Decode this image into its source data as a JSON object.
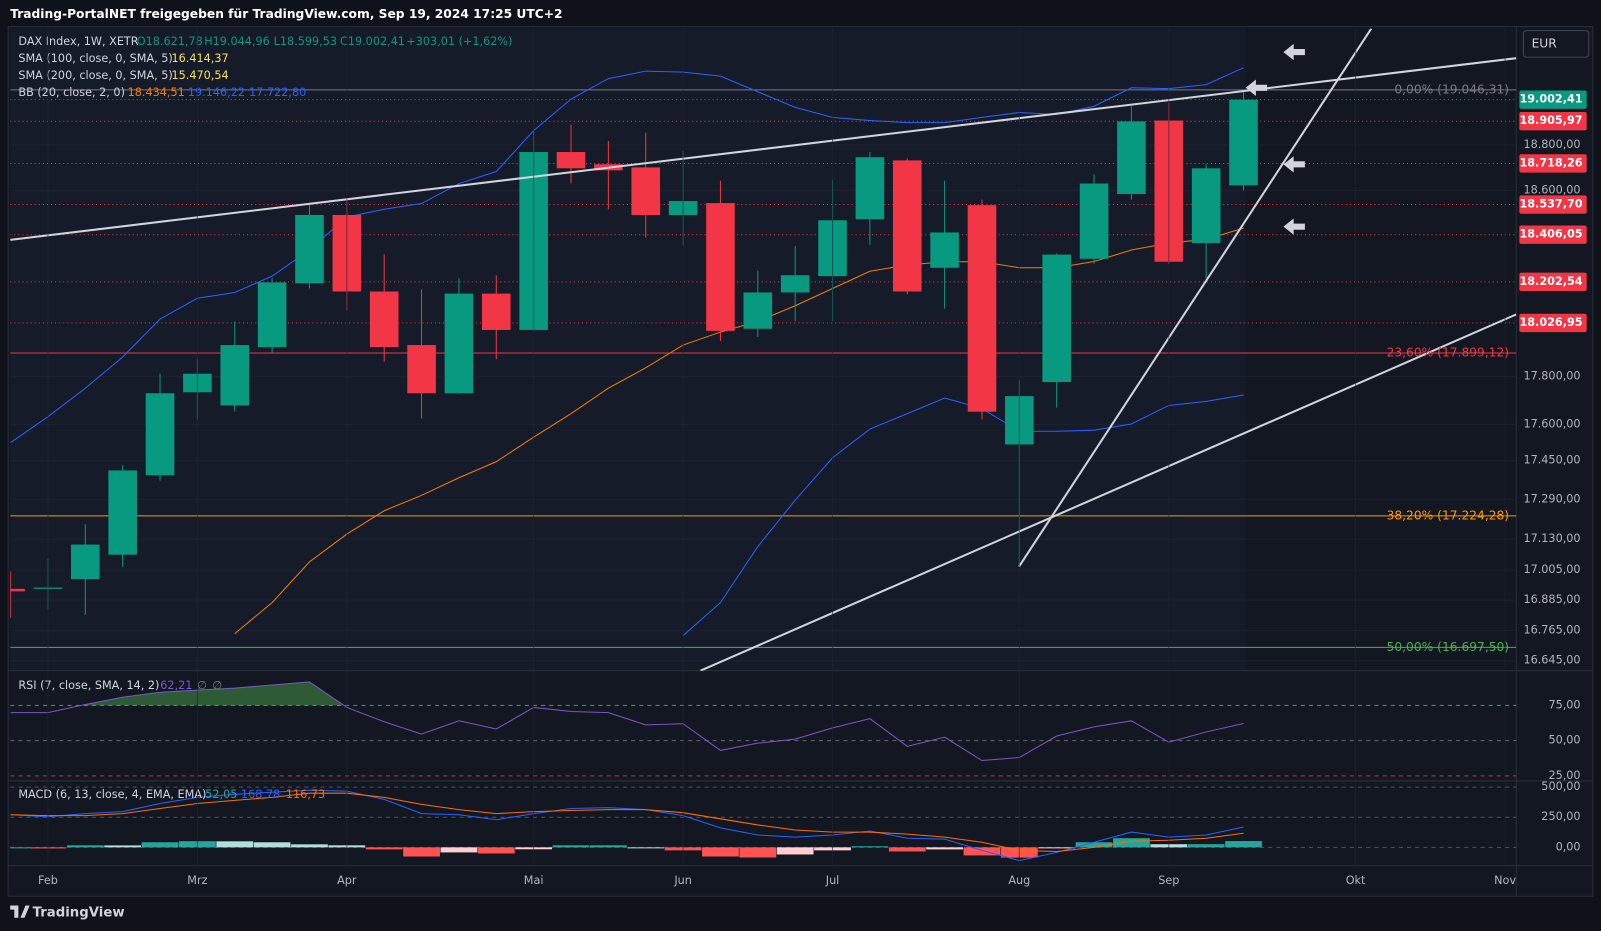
{
  "header": {
    "title": "Trading-PortalNET freigegeben für TradingView.com, Sep 19, 2024 17:25 UTC+2",
    "currency": "EUR",
    "brand": "TradingView"
  },
  "chart_data": [
    {
      "type": "candlestick",
      "name": "DAX Index, 1W, XETR",
      "legend": {
        "open": "O18.621,78",
        "high": "H19.044,96",
        "low": "L18.599,53",
        "close": "C19.002,41",
        "change": "+303,01 (+1,62%)"
      },
      "indicator_legends": [
        {
          "name": "SMA (100, close, 0, SMA, 5)",
          "readouts": [
            "16.414,37"
          ],
          "colors": [
            "#f7e24b"
          ]
        },
        {
          "name": "SMA (200, close, 0, SMA, 5)",
          "readouts": [
            "15.470,54"
          ],
          "colors": [
            "#f7e24b"
          ]
        },
        {
          "name": "BB (20, close, 2, 0)",
          "readouts": [
            "18.434,51",
            "19.146,22",
            "17.722,80"
          ],
          "colors": [
            "#f57c00",
            "#2962ff",
            "#2962ff"
          ]
        }
      ],
      "categories": [
        null,
        null,
        null,
        null,
        null,
        null,
        null,
        null,
        null,
        null,
        null,
        null,
        null,
        null,
        null,
        null,
        null,
        null,
        null,
        null,
        null,
        null,
        null,
        null,
        null,
        null,
        null,
        null,
        null,
        null,
        null,
        null,
        null,
        null
      ],
      "open": [
        16930,
        16930,
        16969,
        17067,
        17390,
        17734,
        17679,
        17924,
        18196,
        18492,
        18161,
        17933,
        17730,
        18152,
        17997,
        18769,
        18715,
        18701,
        18492,
        18544,
        18002,
        18157,
        18227,
        18474,
        18732,
        18263,
        18535,
        17517,
        17777,
        18302,
        18584,
        18909,
        18370,
        18621.78
      ],
      "high": [
        17000,
        17050,
        17190,
        17432,
        17812,
        17873,
        18034,
        18218,
        18542,
        18559,
        18320,
        18170,
        18218,
        18231,
        18864,
        18891,
        18818,
        18855,
        18773,
        18642,
        18250,
        18357,
        18646,
        18769,
        18740,
        18642,
        18559,
        17785,
        18325,
        18670,
        18973,
        18991,
        18715,
        19044.96
      ],
      "low": [
        16815,
        16850,
        16826,
        17017,
        17368,
        17620,
        17653,
        17898,
        18174,
        18079,
        17863,
        17624,
        17726,
        17873,
        17990,
        18630,
        18517,
        18394,
        18361,
        17950,
        17967,
        18034,
        18034,
        18361,
        18150,
        18088,
        17620,
        17017,
        17670,
        18280,
        18559,
        18280,
        18218,
        18599.53
      ],
      "close": [
        16920,
        16935,
        17108,
        17410,
        17730,
        17812,
        17933,
        18200,
        18492,
        18161,
        17924,
        17730,
        18152,
        17997,
        18769,
        18697,
        18688,
        18492,
        18553,
        17993,
        18157,
        18231,
        18469,
        18746,
        18161,
        18416,
        17653,
        17718,
        18320,
        18630,
        18905,
        18289,
        18697,
        19002.41
      ],
      "up_color": "#089981",
      "down_color": "#f23645",
      "series": [
        {
          "color": "#f57c00",
          "values": [
            null,
            null,
            null,
            null,
            null,
            null,
            16752,
            16875,
            17038,
            17150,
            17245,
            17308,
            17380,
            17446,
            17547,
            17645,
            17751,
            17837,
            17933,
            17988,
            18034,
            18100,
            18174,
            18248,
            18275,
            18289,
            18289,
            18263,
            18263,
            18290,
            18340,
            18370,
            18386,
            18434.51
          ]
        },
        {
          "color": "#2962ff",
          "values": [
            17525,
            17632,
            17751,
            17882,
            18043,
            18132,
            18157,
            18227,
            18340,
            18483,
            18517,
            18542,
            18630,
            18683,
            18864,
            19005,
            19097,
            19131,
            19126,
            19108,
            19038,
            18968,
            18923,
            18909,
            18900,
            18900,
            18923,
            18945,
            18936,
            18973,
            19056,
            19052,
            19070,
            19146.22
          ]
        },
        {
          "color": "#2962ff",
          "values": [
            null,
            null,
            null,
            null,
            null,
            null,
            null,
            null,
            null,
            null,
            null,
            null,
            null,
            null,
            null,
            null,
            null,
            null,
            16744,
            16875,
            17100,
            17288,
            17462,
            17581,
            17645,
            17710,
            17666,
            17572,
            17572,
            17576,
            17602,
            17679,
            17696,
            17722.8
          ]
        }
      ],
      "price_lines": [
        {
          "value": 19002.41,
          "label": "19.002,41",
          "color": "#089981"
        },
        {
          "value": 18905.97,
          "label": "18.905,97",
          "color": "#f23645"
        },
        {
          "value": 18718.26,
          "label": "18.718,26",
          "color": "#f23645"
        },
        {
          "value": 18537.7,
          "label": "18.537,70",
          "color": "#f23645"
        },
        {
          "value": 18406.05,
          "label": "18.406,05",
          "color": "#f23645"
        },
        {
          "value": 18202.54,
          "label": "18.202,54",
          "color": "#f23645"
        },
        {
          "value": 18026.95,
          "label": "18.026,95",
          "color": "#f23645"
        }
      ],
      "fib_levels": [
        {
          "value": 19046.31,
          "label": "0,00% (19.046,31)",
          "color": "#787b86"
        },
        {
          "value": 17899.12,
          "label": "23,60% (17.899,12)",
          "color": "#f23645"
        },
        {
          "value": 17224.28,
          "label": "38,20% (17.224,28)",
          "color": "#ff9800"
        },
        {
          "value": 16697.5,
          "label": "50,00% (16.697,50)",
          "color": "#4caf50"
        }
      ],
      "xlim": [
        -0.01,
        40.3
      ],
      "ylim": [
        16606,
        19324
      ],
      "log_scale": true,
      "yticks": [
        {
          "value": 18800,
          "label": "18.800,00"
        },
        {
          "value": 18600,
          "label": "18.600,00"
        },
        {
          "value": 17800,
          "label": "17.800,00"
        },
        {
          "value": 17600,
          "label": "17.600,00"
        },
        {
          "value": 17450,
          "label": "17.450,00"
        },
        {
          "value": 17290,
          "label": "17.290,00"
        },
        {
          "value": 17130,
          "label": "17.130,00"
        },
        {
          "value": 17005,
          "label": "17.005,00"
        },
        {
          "value": 16885,
          "label": "16.885,00"
        },
        {
          "value": 16765,
          "label": "16.765,00"
        },
        {
          "value": 16645,
          "label": "16.645,00"
        }
      ]
    },
    {
      "type": "line",
      "name": "RSI (7, close, SMA, 14, 2)",
      "readouts": [
        "62,21",
        "∅",
        "∅"
      ],
      "readout_colors": [
        "#7e57c2",
        "#787b86",
        "#787b86"
      ],
      "color": "#7e57c2",
      "overbought_color": "#4caf50",
      "values": [
        69.9,
        69.9,
        75.7,
        80.8,
        84.4,
        85.9,
        87.3,
        89.5,
        91.7,
        73.6,
        63.4,
        54.7,
        64.1,
        58.3,
        73.6,
        70.7,
        69.9,
        61.2,
        62.0,
        43.1,
        48.2,
        51.1,
        59.1,
        65.6,
        46.0,
        52.5,
        35.9,
        38.0,
        53.3,
        59.8,
        64.1,
        48.9,
        56.2,
        62.21
      ],
      "xlim": [
        -0.01,
        40.3
      ],
      "ylim": [
        21.4,
        97.5
      ],
      "yticks": [
        {
          "value": 75,
          "label": "75,00",
          "color": "#4caf50"
        },
        {
          "value": 50,
          "label": "50,00",
          "color": "#787b86"
        },
        {
          "value": 25,
          "label": "25,00",
          "color": "#f23645"
        }
      ]
    },
    {
      "type": "macd",
      "name": "MACD (6, 13, close, 4, EMA, EMA)",
      "readouts": [
        "52,05",
        "168,78",
        "116,73"
      ],
      "readout_colors": [
        "#26a69a",
        "#2962ff",
        "#ff6d00"
      ],
      "histogram": [
        0,
        -9,
        17,
        16,
        42,
        51,
        50,
        42,
        25,
        17,
        -17,
        -76,
        -42,
        -51,
        -16,
        17,
        17,
        0,
        -25,
        -76,
        -84,
        -59,
        -25,
        9,
        -34,
        -17,
        -67,
        -85,
        -8,
        42,
        76,
        26,
        26,
        52.05
      ],
      "series": [
        {
          "color": "#2962ff",
          "values": [
            271,
            254,
            280,
            296,
            364,
            415,
            440,
            457,
            474,
            466,
            398,
            280,
            271,
            229,
            280,
            322,
            330,
            313,
            263,
            161,
            102,
            85,
            102,
            136,
            76,
            68,
            -25,
            -110,
            -42,
            42,
            127,
            85,
            102,
            168.78
          ]
        },
        {
          "color": "#ff6d00",
          "values": [
            271,
            263,
            263,
            280,
            322,
            364,
            390,
            415,
            449,
            449,
            415,
            356,
            313,
            280,
            296,
            305,
            313,
            313,
            288,
            237,
            186,
            144,
            127,
            127,
            110,
            85,
            42,
            -25,
            -34,
            0,
            51,
            59,
            76,
            116.73
          ]
        }
      ],
      "xlim": [
        -0.01,
        40.3
      ],
      "ylim": [
        -152,
        551
      ],
      "yticks": [
        {
          "value": 500,
          "label": "500,00"
        },
        {
          "value": 250,
          "label": "250,00"
        },
        {
          "value": 0,
          "label": "0,00"
        }
      ],
      "xticks": [
        {
          "value": 1,
          "label": "Feb"
        },
        {
          "value": 5,
          "label": "Mrz"
        },
        {
          "value": 9,
          "label": "Apr"
        },
        {
          "value": 14,
          "label": "Mai"
        },
        {
          "value": 18,
          "label": "Jun"
        },
        {
          "value": 22,
          "label": "Jul"
        },
        {
          "value": 27,
          "label": "Aug"
        },
        {
          "value": 31,
          "label": "Sep"
        },
        {
          "value": 36,
          "label": "Okt"
        },
        {
          "value": 40,
          "label": "Nov"
        }
      ]
    }
  ]
}
